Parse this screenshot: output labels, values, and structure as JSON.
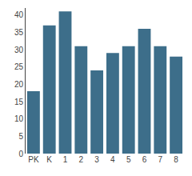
{
  "chart_data": {
    "type": "bar",
    "categories": [
      "PK",
      "K",
      "1",
      "2",
      "3",
      "4",
      "5",
      "6",
      "7",
      "8"
    ],
    "values": [
      18,
      37,
      41,
      31,
      24,
      29,
      31,
      36,
      31,
      28
    ],
    "color": "#3d6e8a",
    "ylim": [
      0,
      42
    ],
    "yticks": [
      0,
      5,
      10,
      15,
      20,
      25,
      30,
      35,
      40
    ],
    "grid": false
  }
}
